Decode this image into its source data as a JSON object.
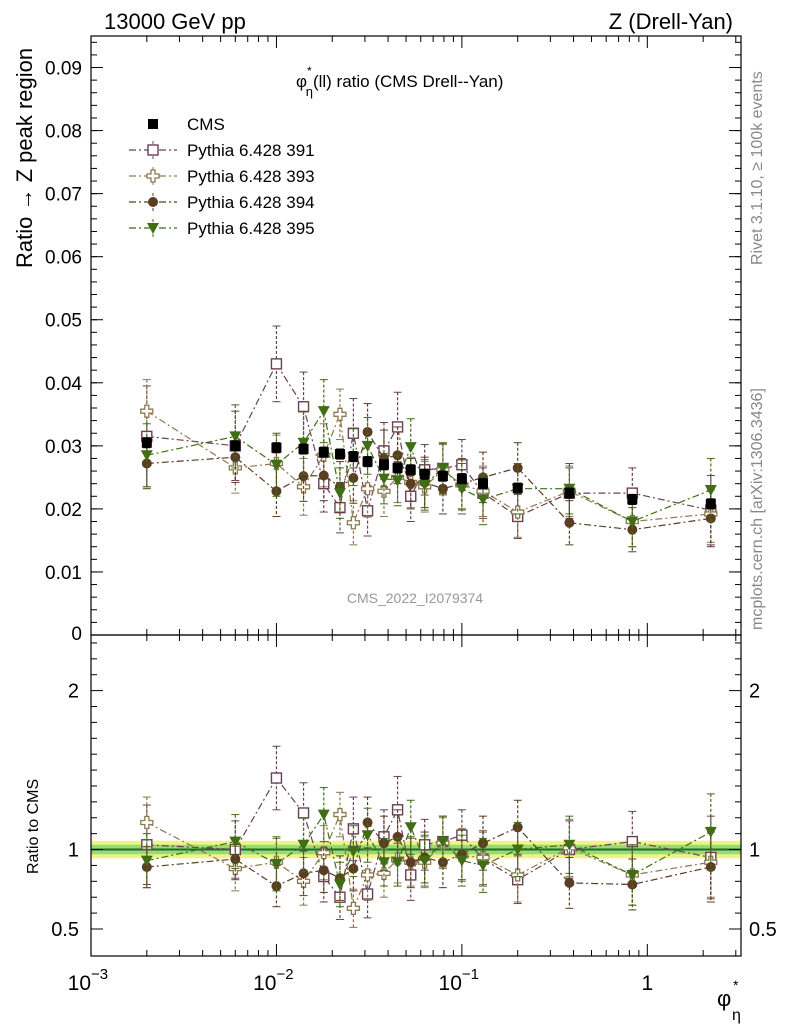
{
  "header": {
    "left": "13000 GeV pp",
    "right": "Z (Drell-Yan)"
  },
  "side_labels": {
    "rivet": "Rivet 3.1.10, ≥ 100k events",
    "mcplots": "mcplots.cern.ch [arXiv:1306.3436]"
  },
  "colors": {
    "cms": "#000000",
    "p391": "#6b3f55",
    "p393": "#8c7a4e",
    "p394": "#5a3d22",
    "p395": "#3f6e14",
    "band_yellow": "#f2f28a",
    "band_green": "#7fd46b",
    "ref_line": "#1f6b2d"
  },
  "chart_data": [
    {
      "type": "scatter",
      "title": "φ*η(ll) ratio (CMS Drell--Yan)",
      "title_parts": {
        "phi": "φ",
        "star": "*",
        "eta": "η",
        "rest": "(ll) ratio (CMS Drell--Yan)"
      },
      "ylabel": "Ratio → Z peak region",
      "watermark": "CMS_2022_I2079374",
      "x_scale": "log",
      "xlim": [
        0.001,
        3.2
      ],
      "ylim": [
        0,
        0.095
      ],
      "y_ticks": [
        {
          "v": 0.01,
          "label": "0.01"
        },
        {
          "v": 0.02,
          "label": "0.02"
        },
        {
          "v": 0.03,
          "label": "0.03"
        },
        {
          "v": 0.04,
          "label": "0.04"
        },
        {
          "v": 0.05,
          "label": "0.05"
        },
        {
          "v": 0.06,
          "label": "0.06"
        },
        {
          "v": 0.07,
          "label": "0.07"
        },
        {
          "v": 0.08,
          "label": "0.08"
        },
        {
          "v": 0.09,
          "label": "0.09"
        }
      ],
      "y_zero_label": "0",
      "legend_position": "top-left",
      "x": [
        0.002,
        0.006,
        0.01,
        0.014,
        0.018,
        0.022,
        0.026,
        0.031,
        0.038,
        0.045,
        0.053,
        0.063,
        0.079,
        0.1,
        0.13,
        0.2,
        0.38,
        0.83,
        2.2
      ],
      "series": [
        {
          "name": "CMS",
          "key": "cms",
          "marker": "square-filled",
          "values": [
            0.0305,
            0.03,
            0.0297,
            0.0295,
            0.029,
            0.0287,
            0.0283,
            0.0275,
            0.027,
            0.0265,
            0.0262,
            0.0255,
            0.0252,
            0.0248,
            0.024,
            0.0233,
            0.0225,
            0.0215,
            0.0208
          ],
          "errors": [
            0.0008,
            0.0008,
            0.0008,
            0.0008,
            0.0008,
            0.0008,
            0.0008,
            0.0008,
            0.0008,
            0.0008,
            0.0008,
            0.0008,
            0.0008,
            0.0008,
            0.0008,
            0.0008,
            0.0008,
            0.0008,
            0.0008
          ]
        },
        {
          "name": "Pythia 6.428 391",
          "key": "p391",
          "marker": "square-open",
          "values": [
            0.0315,
            0.03,
            0.043,
            0.0362,
            0.024,
            0.0202,
            0.032,
            0.0197,
            0.0292,
            0.033,
            0.022,
            0.0262,
            0.0264,
            0.027,
            0.0225,
            0.0188,
            0.0225,
            0.0225,
            0.0198
          ],
          "errors": [
            0.008,
            0.0055,
            0.006,
            0.0055,
            0.0045,
            0.004,
            0.0055,
            0.004,
            0.0045,
            0.0055,
            0.004,
            0.004,
            0.004,
            0.004,
            0.004,
            0.0035,
            0.004,
            0.004,
            0.0055
          ]
        },
        {
          "name": "Pythia 6.428 393",
          "key": "p393",
          "marker": "cross-open",
          "values": [
            0.0355,
            0.0265,
            0.0272,
            0.0235,
            0.0285,
            0.035,
            0.0178,
            0.0232,
            0.0228,
            0.025,
            0.0242,
            0.0235,
            0.0262,
            0.0238,
            0.0228,
            0.0195,
            0.0228,
            0.018,
            0.0192
          ],
          "errors": [
            0.005,
            0.004,
            0.0045,
            0.0045,
            0.005,
            0.004,
            0.0035,
            0.0045,
            0.004,
            0.004,
            0.004,
            0.004,
            0.004,
            0.004,
            0.004,
            0.004,
            0.004,
            0.004,
            0.0045
          ]
        },
        {
          "name": "Pythia 6.428 394",
          "key": "p394",
          "marker": "circle-filled",
          "values": [
            0.0272,
            0.0282,
            0.0228,
            0.0252,
            0.0253,
            0.0235,
            0.0249,
            0.0322,
            0.028,
            0.0285,
            0.024,
            0.0242,
            0.0232,
            0.024,
            0.025,
            0.0265,
            0.0178,
            0.0167,
            0.0185
          ],
          "errors": [
            0.004,
            0.004,
            0.004,
            0.004,
            0.004,
            0.004,
            0.004,
            0.0045,
            0.0045,
            0.0045,
            0.004,
            0.004,
            0.004,
            0.004,
            0.004,
            0.004,
            0.0035,
            0.0035,
            0.0045
          ]
        },
        {
          "name": "Pythia 6.428 395",
          "key": "p395",
          "marker": "triangle-down-filled",
          "values": [
            0.0285,
            0.0315,
            0.027,
            0.0305,
            0.0355,
            0.0225,
            0.0282,
            0.03,
            0.0248,
            0.0245,
            0.0298,
            0.0238,
            0.0265,
            0.0232,
            0.0215,
            0.0232,
            0.0232,
            0.018,
            0.023
          ],
          "errors": [
            0.005,
            0.005,
            0.005,
            0.005,
            0.005,
            0.004,
            0.0045,
            0.0045,
            0.004,
            0.004,
            0.0045,
            0.004,
            0.004,
            0.004,
            0.004,
            0.004,
            0.004,
            0.004,
            0.005
          ]
        }
      ]
    },
    {
      "type": "scatter",
      "ylabel": "Ratio to CMS",
      "x_scale": "log",
      "xlim": [
        0.001,
        3.2
      ],
      "ylim": [
        0.33,
        2.35
      ],
      "x_ticks": [
        {
          "v": 0.001,
          "base": "10",
          "exp": "−3"
        },
        {
          "v": 0.01,
          "base": "10",
          "exp": "−2"
        },
        {
          "v": 0.1,
          "base": "10",
          "exp": "−1"
        },
        {
          "v": 1,
          "base": "1",
          "exp": ""
        }
      ],
      "y_ticks": [
        {
          "v": 0.5,
          "label": "0.5"
        },
        {
          "v": 1,
          "label": "1"
        },
        {
          "v": 2,
          "label": "2"
        }
      ],
      "xlabel_parts": {
        "phi": "φ",
        "star": "*",
        "eta": "η"
      },
      "reference": 1,
      "band": [
        0.97,
        1.03
      ],
      "x": [
        0.002,
        0.006,
        0.01,
        0.014,
        0.018,
        0.022,
        0.026,
        0.031,
        0.038,
        0.045,
        0.053,
        0.063,
        0.079,
        0.1,
        0.13,
        0.2,
        0.38,
        0.83,
        2.2
      ],
      "series": [
        {
          "name": "Pythia 6.428 391",
          "key": "p391",
          "marker": "square-open",
          "values": [
            1.03,
            1.0,
            1.45,
            1.23,
            0.83,
            0.7,
            1.13,
            0.72,
            1.08,
            1.25,
            0.84,
            1.03,
            1.05,
            1.09,
            0.94,
            0.81,
            1.0,
            1.05,
            0.95
          ],
          "errors": [
            0.25,
            0.18,
            0.2,
            0.19,
            0.16,
            0.14,
            0.2,
            0.15,
            0.17,
            0.21,
            0.16,
            0.16,
            0.16,
            0.16,
            0.17,
            0.15,
            0.18,
            0.19,
            0.26
          ]
        },
        {
          "name": "Pythia 6.428 393",
          "key": "p393",
          "marker": "cross-open",
          "values": [
            1.17,
            0.88,
            0.92,
            0.8,
            0.98,
            1.22,
            0.63,
            0.84,
            0.85,
            0.94,
            0.92,
            0.92,
            1.04,
            0.96,
            0.95,
            0.84,
            1.01,
            0.84,
            0.92
          ],
          "errors": [
            0.16,
            0.14,
            0.15,
            0.15,
            0.17,
            0.14,
            0.12,
            0.16,
            0.15,
            0.15,
            0.15,
            0.16,
            0.16,
            0.16,
            0.17,
            0.17,
            0.18,
            0.19,
            0.22
          ]
        },
        {
          "name": "Pythia 6.428 394",
          "key": "p394",
          "marker": "circle-filled",
          "values": [
            0.89,
            0.94,
            0.77,
            0.85,
            0.87,
            0.82,
            0.88,
            1.17,
            1.04,
            1.08,
            0.92,
            0.95,
            0.92,
            0.97,
            1.04,
            1.14,
            0.79,
            0.78,
            0.89
          ],
          "errors": [
            0.13,
            0.13,
            0.13,
            0.14,
            0.14,
            0.14,
            0.14,
            0.16,
            0.17,
            0.17,
            0.16,
            0.16,
            0.16,
            0.16,
            0.17,
            0.17,
            0.16,
            0.16,
            0.22
          ]
        },
        {
          "name": "Pythia 6.428 395",
          "key": "p395",
          "marker": "triangle-down-filled",
          "values": [
            0.93,
            1.05,
            0.91,
            1.03,
            1.22,
            0.78,
            0.99,
            1.09,
            0.92,
            0.92,
            1.14,
            0.93,
            1.05,
            0.93,
            0.9,
            1.0,
            1.03,
            0.84,
            1.11
          ],
          "errors": [
            0.17,
            0.17,
            0.17,
            0.17,
            0.17,
            0.14,
            0.16,
            0.17,
            0.15,
            0.15,
            0.17,
            0.16,
            0.16,
            0.16,
            0.17,
            0.17,
            0.18,
            0.19,
            0.24
          ]
        }
      ]
    }
  ]
}
